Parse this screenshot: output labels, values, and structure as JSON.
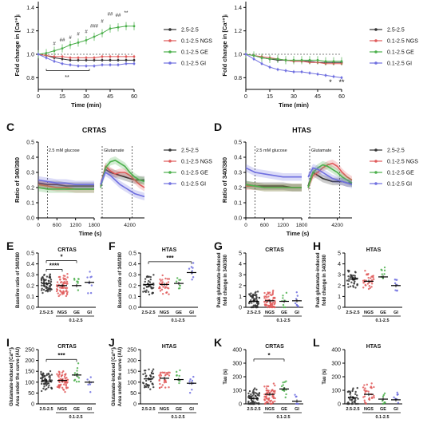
{
  "series_colors": {
    "2.5-2.5": "#333333",
    "0.1-2.5 NGS": "#e05a5a",
    "0.1-2.5 GE": "#4cb04c",
    "0.1-2.5 GI": "#6f6fe0"
  },
  "chart_data": [
    {
      "panel": "A",
      "type": "line",
      "title": "CRTAS",
      "xlabel": "Time (min)",
      "ylabel": "Fold change in [Ca²⁺]ᵢ",
      "xlim": [
        0,
        60
      ],
      "ylim": [
        0.7,
        1.45
      ],
      "xticks": [
        "0",
        "15",
        "30",
        "45",
        "60"
      ],
      "yticks": [
        "0.8",
        "1.0",
        "1.2",
        "1.4"
      ],
      "x": [
        0,
        5,
        10,
        15,
        20,
        25,
        30,
        35,
        40,
        45,
        50,
        55,
        60
      ],
      "series": [
        {
          "name": "2.5-2.5",
          "values": [
            1.0,
            0.99,
            0.97,
            0.96,
            0.95,
            0.95,
            0.95,
            0.95,
            0.95,
            0.95,
            0.95,
            0.95,
            0.95
          ]
        },
        {
          "name": "0.1-2.5 NGS",
          "values": [
            1.0,
            0.99,
            0.98,
            0.98,
            0.97,
            0.97,
            0.97,
            0.97,
            0.98,
            0.98,
            0.98,
            0.98,
            0.98
          ]
        },
        {
          "name": "0.1-2.5 GE",
          "values": [
            1.0,
            1.01,
            1.03,
            1.05,
            1.08,
            1.1,
            1.12,
            1.15,
            1.18,
            1.22,
            1.23,
            1.24,
            1.24
          ]
        },
        {
          "name": "0.1-2.5 GI",
          "values": [
            1.0,
            0.97,
            0.94,
            0.92,
            0.91,
            0.9,
            0.9,
            0.9,
            0.91,
            0.91,
            0.91,
            0.92,
            0.92
          ]
        }
      ],
      "annotations": [
        "#",
        "##",
        "#",
        "#",
        "#",
        "###",
        "#",
        "##",
        "##",
        "**"
      ]
    },
    {
      "panel": "B",
      "type": "line",
      "title": "HTAS",
      "xlabel": "Time (min)",
      "ylabel": "Fold change in [Ca²⁺]ᵢ",
      "xlim": [
        0,
        60
      ],
      "ylim": [
        0.7,
        1.45
      ],
      "xticks": [
        "0",
        "15",
        "30",
        "45",
        "60"
      ],
      "yticks": [
        "0.8",
        "1.0",
        "1.2",
        "1.4"
      ],
      "x": [
        0,
        5,
        10,
        15,
        20,
        25,
        30,
        35,
        40,
        45,
        50,
        55,
        60
      ],
      "series": [
        {
          "name": "2.5-2.5",
          "values": [
            1.0,
            0.99,
            0.97,
            0.96,
            0.95,
            0.95,
            0.94,
            0.94,
            0.94,
            0.93,
            0.93,
            0.93,
            0.93
          ]
        },
        {
          "name": "0.1-2.5 NGS",
          "values": [
            1.0,
            0.99,
            0.98,
            0.97,
            0.96,
            0.95,
            0.94,
            0.94,
            0.93,
            0.93,
            0.92,
            0.92,
            0.92
          ]
        },
        {
          "name": "0.1-2.5 GE",
          "values": [
            1.0,
            0.99,
            0.97,
            0.96,
            0.96,
            0.95,
            0.95,
            0.95,
            0.95,
            0.95,
            0.94,
            0.94,
            0.94
          ]
        },
        {
          "name": "0.1-2.5 GI",
          "values": [
            1.0,
            0.96,
            0.92,
            0.89,
            0.87,
            0.86,
            0.85,
            0.85,
            0.84,
            0.83,
            0.82,
            0.81,
            0.8
          ]
        }
      ],
      "annotations": [
        "*",
        "**"
      ]
    },
    {
      "panel": "C",
      "type": "line",
      "title": "CRTAS",
      "xlabel": "Time (s)",
      "ylabel": "Ratio of 340/380",
      "ylim": [
        0.0,
        0.5
      ],
      "xticks": [
        "0",
        "600",
        "1200",
        "1800",
        "4200"
      ],
      "yticks": [
        "0.0",
        "0.1",
        "0.2",
        "0.3",
        "0.4",
        "0.5"
      ],
      "annotations": [
        "2.5 mM glucose",
        "Glutamate"
      ],
      "segment1": {
        "x": [
          0,
          300,
          600,
          900,
          1200,
          1500,
          1800
        ],
        "series": [
          {
            "name": "2.5-2.5",
            "values": [
              0.23,
              0.22,
              0.22,
              0.21,
              0.21,
              0.21,
              0.21
            ]
          },
          {
            "name": "0.1-2.5 NGS",
            "values": [
              0.22,
              0.21,
              0.2,
              0.2,
              0.19,
              0.19,
              0.19
            ]
          },
          {
            "name": "0.1-2.5 GE",
            "values": [
              0.2,
              0.19,
              0.19,
              0.19,
              0.19,
              0.19,
              0.19
            ]
          },
          {
            "name": "0.1-2.5 GI",
            "values": [
              0.25,
              0.24,
              0.23,
              0.23,
              0.22,
              0.22,
              0.22
            ]
          }
        ]
      },
      "segment2": {
        "x": [
          3600,
          3700,
          3800,
          3900,
          4000,
          4100,
          4200,
          4300,
          4400,
          4500
        ],
        "series": [
          {
            "name": "2.5-2.5",
            "values": [
              0.22,
              0.32,
              0.3,
              0.29,
              0.28,
              0.27,
              0.26,
              0.25,
              0.25,
              0.25
            ]
          },
          {
            "name": "0.1-2.5 NGS",
            "values": [
              0.21,
              0.34,
              0.31,
              0.29,
              0.3,
              0.3,
              0.28,
              0.25,
              0.22,
              0.2
            ]
          },
          {
            "name": "0.1-2.5 GE",
            "values": [
              0.2,
              0.33,
              0.37,
              0.38,
              0.36,
              0.34,
              0.3,
              0.27,
              0.25,
              0.24
            ]
          },
          {
            "name": "0.1-2.5 GI",
            "values": [
              0.22,
              0.3,
              0.28,
              0.25,
              0.22,
              0.2,
              0.18,
              0.16,
              0.15,
              0.14
            ]
          }
        ]
      }
    },
    {
      "panel": "D",
      "type": "line",
      "title": "HTAS",
      "xlabel": "Time (s)",
      "ylabel": "Ratio of 340/380",
      "ylim": [
        0.0,
        0.5
      ],
      "xticks": [
        "0",
        "600",
        "1200",
        "1800",
        "4200"
      ],
      "yticks": [
        "0.0",
        "0.1",
        "0.2",
        "0.3",
        "0.4",
        "0.5"
      ],
      "annotations": [
        "2.5 mM glucose",
        "Glutamate"
      ],
      "segment1": {
        "x": [
          0,
          300,
          600,
          900,
          1200,
          1500,
          1800
        ],
        "series": [
          {
            "name": "2.5-2.5",
            "values": [
              0.22,
              0.21,
              0.21,
              0.21,
              0.21,
              0.2,
              0.2
            ]
          },
          {
            "name": "0.1-2.5 NGS",
            "values": [
              0.21,
              0.21,
              0.2,
              0.2,
              0.2,
              0.2,
              0.2
            ]
          },
          {
            "name": "0.1-2.5 GE",
            "values": [
              0.22,
              0.21,
              0.2,
              0.2,
              0.2,
              0.2,
              0.2
            ]
          },
          {
            "name": "0.1-2.5 GI",
            "values": [
              0.33,
              0.3,
              0.29,
              0.28,
              0.27,
              0.27,
              0.27
            ]
          }
        ]
      },
      "segment2": {
        "x": [
          3600,
          3700,
          3800,
          3900,
          4000,
          4100,
          4200,
          4300,
          4400,
          4500
        ],
        "series": [
          {
            "name": "2.5-2.5",
            "values": [
              0.21,
              0.3,
              0.28,
              0.26,
              0.25,
              0.24,
              0.24,
              0.24,
              0.23,
              0.23
            ]
          },
          {
            "name": "0.1-2.5 NGS",
            "values": [
              0.2,
              0.28,
              0.3,
              0.33,
              0.35,
              0.36,
              0.34,
              0.3,
              0.27,
              0.25
            ]
          },
          {
            "name": "0.1-2.5 GE",
            "values": [
              0.2,
              0.3,
              0.33,
              0.35,
              0.34,
              0.32,
              0.3,
              0.27,
              0.25,
              0.23
            ]
          },
          {
            "name": "0.1-2.5 GI",
            "values": [
              0.27,
              0.33,
              0.32,
              0.3,
              0.28,
              0.26,
              0.25,
              0.24,
              0.23,
              0.22
            ]
          }
        ]
      }
    },
    {
      "panel": "E",
      "type": "scatter",
      "title": "CRTAS",
      "ylabel": "Baseline ratio of 340/380",
      "categories": [
        "2.5-2.5",
        "NGS",
        "GE",
        "GI"
      ],
      "group_label": "0.1-2.5",
      "ylim": [
        0.0,
        0.5
      ],
      "yticks": [
        "0.0",
        "0.1",
        "0.2",
        "0.3",
        "0.4",
        "0.5"
      ],
      "means": [
        0.22,
        0.2,
        0.2,
        0.23
      ],
      "n": [
        60,
        60,
        8,
        8
      ],
      "annotations": [
        "*",
        "****"
      ]
    },
    {
      "panel": "F",
      "type": "scatter",
      "title": "HTAS",
      "ylabel": "Baseline ratio of 340/380",
      "categories": [
        "2.5-2.5",
        "NGS",
        "GE",
        "GI"
      ],
      "group_label": "0.1-2.5",
      "ylim": [
        0.0,
        0.5
      ],
      "yticks": [
        "0.0",
        "0.1",
        "0.2",
        "0.3",
        "0.4",
        "0.5"
      ],
      "means": [
        0.21,
        0.21,
        0.22,
        0.32
      ],
      "n": [
        40,
        30,
        8,
        8
      ],
      "annotations": [
        "***"
      ]
    },
    {
      "panel": "G",
      "type": "scatter",
      "title": "CRTAS",
      "ylabel": "Peak glutamate-induced fold change in 340/380",
      "categories": [
        "2.5-2.5",
        "NGS",
        "GE",
        "GI"
      ],
      "group_label": "0.1-2.5",
      "ylim": [
        0,
        5
      ],
      "yticks": [
        "0",
        "1",
        "2",
        "3",
        "4",
        "5"
      ],
      "means": [
        0.55,
        0.6,
        0.55,
        0.6
      ],
      "n": [
        60,
        60,
        8,
        8
      ]
    },
    {
      "panel": "H",
      "type": "scatter",
      "title": "HTAS",
      "ylabel": "Peak glutamate-induced fold change in 340/380",
      "categories": [
        "2.5-2.5",
        "NGS",
        "GE",
        "GI"
      ],
      "group_label": "0.1-2.5",
      "ylim": [
        0,
        5
      ],
      "yticks": [
        "0",
        "1",
        "2",
        "3",
        "4",
        "5"
      ],
      "means": [
        2.6,
        2.4,
        2.8,
        2.0
      ],
      "n": [
        40,
        30,
        8,
        8
      ]
    },
    {
      "panel": "I",
      "type": "scatter",
      "title": "CRTAS",
      "ylabel": "Glutamate-induced [Ca²⁺]ᵢ Area under the curve (AU)",
      "categories": [
        "2.5-2.5",
        "NGS",
        "GE",
        "GI"
      ],
      "group_label": "0.1-2.5",
      "ylim": [
        0,
        250
      ],
      "yticks": [
        "0",
        "50",
        "100",
        "150",
        "200",
        "250"
      ],
      "means": [
        105,
        108,
        133,
        100
      ],
      "n": [
        60,
        60,
        12,
        6
      ],
      "annotations": [
        "***"
      ]
    },
    {
      "panel": "J",
      "type": "scatter",
      "title": "HTAS",
      "ylabel": "Glutamate-induced [Ca²⁺]ᵢ Area under the curve (AU)",
      "categories": [
        "2.5-2.5",
        "NGS",
        "GE",
        "GI"
      ],
      "group_label": "0.1-2.5",
      "ylim": [
        0,
        250
      ],
      "yticks": [
        "0",
        "50",
        "100",
        "150",
        "200",
        "250"
      ],
      "means": [
        115,
        118,
        112,
        95
      ],
      "n": [
        40,
        30,
        8,
        8
      ]
    },
    {
      "panel": "K",
      "type": "scatter",
      "title": "CRTAS",
      "ylabel": "Tau (s)",
      "categories": [
        "2.5-2.5",
        "NGS",
        "GE",
        "GI"
      ],
      "group_label": "0.1-2.5",
      "ylim": [
        0,
        400
      ],
      "yticks": [
        "0",
        "100",
        "200",
        "300",
        "400"
      ],
      "means": [
        40,
        70,
        110,
        20
      ],
      "n": [
        60,
        60,
        12,
        6
      ],
      "annotations": [
        "*"
      ]
    },
    {
      "panel": "L",
      "type": "scatter",
      "title": "HTAS",
      "ylabel": "Tau (s)",
      "categories": [
        "2.5-2.5",
        "NGS",
        "GE",
        "GI"
      ],
      "group_label": "0.1-2.5",
      "ylim": [
        0,
        400
      ],
      "yticks": [
        "0",
        "100",
        "200",
        "300",
        "400"
      ],
      "means": [
        45,
        70,
        35,
        30
      ],
      "n": [
        40,
        30,
        8,
        8
      ]
    }
  ]
}
